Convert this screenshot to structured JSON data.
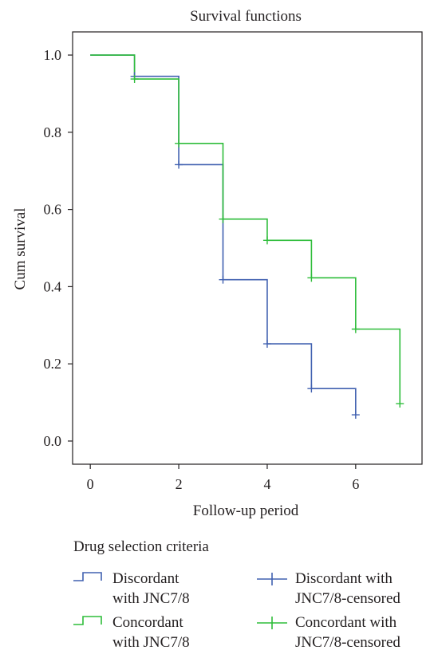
{
  "chart_data": {
    "type": "line",
    "title": "Survival functions",
    "xlabel": "Follow-up period",
    "ylabel": "Cum survival",
    "xlim": [
      -0.4,
      7.5
    ],
    "ylim": [
      -0.06,
      1.06
    ],
    "x_ticks": [
      "0",
      "2",
      "4",
      "6"
    ],
    "y_ticks": [
      "0.0",
      "0.2",
      "0.4",
      "0.6",
      "0.8",
      "1.0"
    ],
    "x_tick_values": [
      0,
      2,
      4,
      6
    ],
    "y_tick_values": [
      0.0,
      0.2,
      0.4,
      0.6,
      0.8,
      1.0
    ],
    "grid": false,
    "legend_title": "Drug selection criteria",
    "legend_position": "bottom",
    "series": [
      {
        "name": "Discordant with JNC7/8",
        "label_lines": [
          "Discordant",
          "with JNC7/8"
        ],
        "color": "#4060b0",
        "style": "step",
        "x": [
          0,
          1,
          2,
          3,
          4,
          5,
          6
        ],
        "y": [
          1.0,
          0.945,
          0.716,
          0.418,
          0.252,
          0.136,
          0.068
        ]
      },
      {
        "name": "Concordant with JNC7/8",
        "label_lines": [
          "Concordant",
          "with JNC7/8"
        ],
        "color": "#2ebd3a",
        "style": "step",
        "x": [
          0,
          1,
          2,
          3,
          4,
          5,
          6,
          7
        ],
        "y": [
          1.0,
          0.938,
          0.771,
          0.575,
          0.52,
          0.423,
          0.29,
          0.097
        ]
      }
    ],
    "censored": [
      {
        "name": "Discordant with JNC7/8-censored",
        "label_lines": [
          "Discordant with",
          "JNC7/8-censored"
        ],
        "color": "#4060b0",
        "points": [
          [
            1,
            0.945
          ],
          [
            2,
            0.716
          ],
          [
            3,
            0.418
          ],
          [
            4,
            0.252
          ],
          [
            5,
            0.136
          ],
          [
            6,
            0.068
          ]
        ]
      },
      {
        "name": "Concordant with JNC7/8-censored",
        "label_lines": [
          "Concordant with",
          "JNC7/8-censored"
        ],
        "color": "#2ebd3a",
        "points": [
          [
            1,
            0.938
          ],
          [
            2,
            0.771
          ],
          [
            3,
            0.575
          ],
          [
            4,
            0.52
          ],
          [
            5,
            0.423
          ],
          [
            6,
            0.29
          ],
          [
            7,
            0.097
          ]
        ]
      }
    ]
  }
}
